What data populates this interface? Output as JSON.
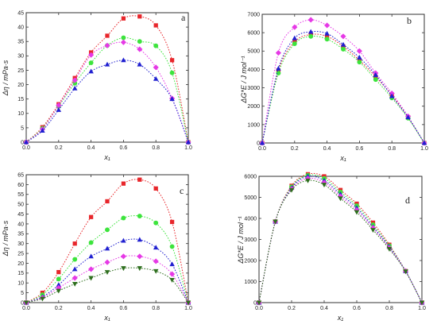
{
  "chart_data": [
    {
      "panel": "a",
      "type": "scatter",
      "xlabel": "x₁",
      "ylabel": "Δη / mPa·s",
      "xlim": [
        0,
        1
      ],
      "ylim": [
        0,
        45
      ],
      "xticks": [
        0.0,
        0.2,
        0.4,
        0.6,
        0.8,
        1.0
      ],
      "yticks": [
        0,
        5,
        10,
        15,
        20,
        25,
        30,
        35,
        40,
        45
      ],
      "series": [
        {
          "marker": "square",
          "color": "#e8262b",
          "x": [
            0,
            0.1,
            0.2,
            0.3,
            0.4,
            0.5,
            0.6,
            0.7,
            0.8,
            0.9,
            1.0
          ],
          "y": [
            0,
            5.2,
            13.2,
            22.3,
            31.2,
            37,
            43,
            43.7,
            40.6,
            28.5,
            0
          ]
        },
        {
          "marker": "circle",
          "color": "#3ce43c",
          "x": [
            0,
            0.1,
            0.2,
            0.3,
            0.4,
            0.5,
            0.6,
            0.7,
            0.8,
            0.9,
            1.0
          ],
          "y": [
            0,
            4.8,
            12.5,
            20.5,
            27.6,
            33.6,
            36.3,
            35,
            33.5,
            24.1,
            0
          ]
        },
        {
          "marker": "diamond",
          "color": "#e639e6",
          "x": [
            0,
            0.1,
            0.2,
            0.3,
            0.4,
            0.5,
            0.6,
            0.7,
            0.8,
            0.9,
            1.0
          ],
          "y": [
            0,
            4.5,
            12.8,
            21.5,
            30.3,
            33.6,
            34.7,
            32.3,
            26,
            15.2,
            0
          ]
        },
        {
          "marker": "triangle",
          "color": "#2020d0",
          "x": [
            0,
            0.1,
            0.2,
            0.3,
            0.4,
            0.5,
            0.6,
            0.7,
            0.8,
            0.9,
            1.0
          ],
          "y": [
            0,
            4,
            11.2,
            18.7,
            24.6,
            27,
            28.5,
            27,
            22,
            15,
            0
          ]
        }
      ]
    },
    {
      "panel": "b",
      "type": "scatter",
      "xlabel": "x₁",
      "ylabel": "ΔG*E / J mol⁻¹",
      "xlim": [
        0,
        1
      ],
      "ylim": [
        0,
        7000
      ],
      "xticks": [
        0.0,
        0.2,
        0.4,
        0.6,
        0.8,
        1.0
      ],
      "yticks": [
        0,
        1000,
        2000,
        3000,
        4000,
        5000,
        6000,
        7000
      ],
      "series": [
        {
          "marker": "square",
          "color": "#e8262b",
          "x": [
            0,
            0.1,
            0.2,
            0.3,
            0.4,
            0.5,
            0.6,
            0.7,
            0.8,
            0.9,
            1.0
          ],
          "y": [
            0,
            3950,
            5500,
            5900,
            5800,
            5250,
            4500,
            3600,
            2600,
            1400,
            0
          ]
        },
        {
          "marker": "circle",
          "color": "#3ce43c",
          "x": [
            0,
            0.1,
            0.2,
            0.3,
            0.4,
            0.5,
            0.6,
            0.7,
            0.8,
            0.9,
            1.0
          ],
          "y": [
            0,
            3800,
            5400,
            5800,
            5650,
            5100,
            4400,
            3450,
            2450,
            1350,
            0
          ]
        },
        {
          "marker": "diamond",
          "color": "#e639e6",
          "x": [
            0,
            0.1,
            0.2,
            0.3,
            0.4,
            0.5,
            0.6,
            0.7,
            0.8,
            0.9,
            1.0
          ],
          "y": [
            0,
            4900,
            6300,
            6700,
            6400,
            5800,
            5000,
            3800,
            2700,
            1450,
            0
          ]
        },
        {
          "marker": "triangle",
          "color": "#2020d0",
          "x": [
            0,
            0.1,
            0.2,
            0.3,
            0.4,
            0.5,
            0.6,
            0.7,
            0.8,
            0.9,
            1.0
          ],
          "y": [
            0,
            4050,
            5700,
            6050,
            5950,
            5350,
            4650,
            3700,
            2550,
            1400,
            0
          ]
        }
      ]
    },
    {
      "panel": "c",
      "type": "scatter",
      "xlabel": "x₁",
      "ylabel": "Δη / mPa·s",
      "xlim": [
        0,
        1
      ],
      "ylim": [
        0,
        65
      ],
      "xticks": [
        0.0,
        0.2,
        0.4,
        0.6,
        0.8,
        1.0
      ],
      "yticks": [
        0,
        5,
        10,
        15,
        20,
        25,
        30,
        35,
        40,
        45,
        50,
        55,
        60,
        65
      ],
      "series": [
        {
          "marker": "square",
          "color": "#e8262b",
          "x": [
            0,
            0.1,
            0.2,
            0.3,
            0.4,
            0.5,
            0.6,
            0.7,
            0.8,
            0.9,
            1.0
          ],
          "y": [
            0,
            5,
            15.5,
            30,
            43.5,
            51.5,
            60.5,
            62.5,
            58,
            41,
            0
          ]
        },
        {
          "marker": "circle",
          "color": "#3ce43c",
          "x": [
            0,
            0.1,
            0.2,
            0.3,
            0.4,
            0.5,
            0.6,
            0.7,
            0.8,
            0.9,
            1.0
          ],
          "y": [
            0,
            4,
            12,
            22,
            30.5,
            37,
            43,
            44,
            40.5,
            28.5,
            0
          ]
        },
        {
          "marker": "triangle",
          "color": "#2020d0",
          "x": [
            0,
            0.1,
            0.2,
            0.3,
            0.4,
            0.5,
            0.6,
            0.7,
            0.8,
            0.9,
            1.0
          ],
          "y": [
            0,
            3,
            9,
            17,
            23.5,
            27.5,
            31.5,
            32,
            28,
            19.5,
            0
          ]
        },
        {
          "marker": "diamond",
          "color": "#e639e6",
          "x": [
            0,
            0.1,
            0.2,
            0.3,
            0.4,
            0.5,
            0.6,
            0.7,
            0.8,
            0.9,
            1.0
          ],
          "y": [
            0,
            2.5,
            7.5,
            12.5,
            17,
            20.5,
            23.5,
            23.5,
            21,
            14.5,
            0
          ]
        },
        {
          "marker": "triangle-down",
          "color": "#2e6f1e",
          "x": [
            0,
            0.1,
            0.2,
            0.3,
            0.4,
            0.5,
            0.6,
            0.7,
            0.8,
            0.9,
            1.0
          ],
          "y": [
            0,
            2,
            6,
            9.5,
            12.5,
            15.5,
            17.5,
            17.5,
            16,
            11.5,
            0
          ]
        }
      ]
    },
    {
      "panel": "d",
      "type": "scatter",
      "xlabel": "x₁",
      "ylabel": "ΔG*E / J mol⁻¹",
      "xlim": [
        0,
        1
      ],
      "ylim": [
        0,
        6000
      ],
      "xticks": [
        0.0,
        0.2,
        0.4,
        0.6,
        0.8,
        1.0
      ],
      "yticks": [
        0,
        1000,
        2000,
        3000,
        4000,
        5000,
        6000
      ],
      "series": [
        {
          "marker": "square",
          "color": "#e8262b",
          "x": [
            0,
            0.1,
            0.2,
            0.3,
            0.4,
            0.5,
            0.6,
            0.7,
            0.8,
            0.9,
            1.0
          ],
          "y": [
            0,
            3850,
            5550,
            6100,
            6000,
            5350,
            4700,
            3800,
            2750,
            1500,
            0
          ]
        },
        {
          "marker": "circle",
          "color": "#3ce43c",
          "x": [
            0,
            0.1,
            0.2,
            0.3,
            0.4,
            0.5,
            0.6,
            0.7,
            0.8,
            0.9,
            1.0
          ],
          "y": [
            0,
            3850,
            5500,
            6050,
            5900,
            5250,
            4600,
            3700,
            2700,
            1500,
            0
          ]
        },
        {
          "marker": "triangle",
          "color": "#2020d0",
          "x": [
            0,
            0.1,
            0.2,
            0.3,
            0.4,
            0.5,
            0.6,
            0.7,
            0.8,
            0.9,
            1.0
          ],
          "y": [
            0,
            3850,
            5450,
            6000,
            5800,
            5150,
            4500,
            3600,
            2650,
            1500,
            0
          ]
        },
        {
          "marker": "diamond",
          "color": "#e639e6",
          "x": [
            0,
            0.1,
            0.2,
            0.3,
            0.4,
            0.5,
            0.6,
            0.7,
            0.8,
            0.9,
            1.0
          ],
          "y": [
            0,
            3850,
            5400,
            5900,
            5700,
            5050,
            4400,
            3550,
            2600,
            1500,
            0
          ]
        },
        {
          "marker": "triangle-down",
          "color": "#2e6f1e",
          "x": [
            0,
            0.1,
            0.2,
            0.3,
            0.4,
            0.5,
            0.6,
            0.7,
            0.8,
            0.9,
            1.0
          ],
          "y": [
            0,
            3850,
            5350,
            5800,
            5600,
            4950,
            4300,
            3450,
            2550,
            1480,
            0
          ]
        }
      ]
    }
  ]
}
